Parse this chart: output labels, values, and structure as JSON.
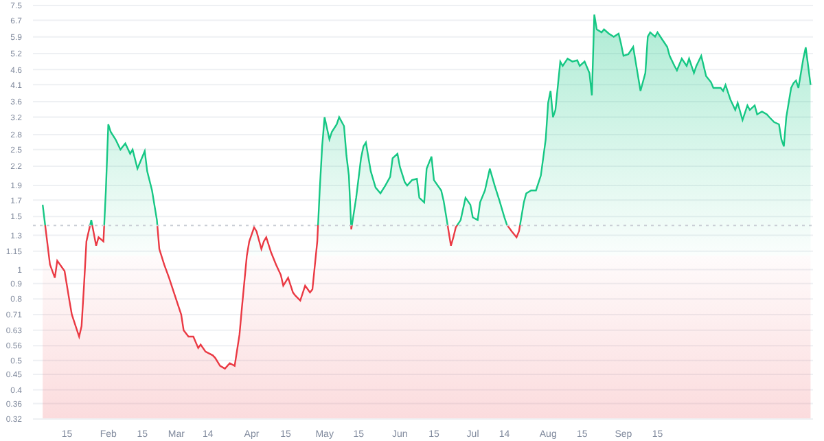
{
  "chart_data": {
    "type": "area",
    "xlim": [
      "--01-01",
      "--11-18"
    ],
    "xticks": [
      {
        "value": "--01-15",
        "label": "15"
      },
      {
        "value": "--02-01",
        "label": "Feb"
      },
      {
        "value": "--02-15",
        "label": "15"
      },
      {
        "value": "--03-01",
        "label": "Mar"
      },
      {
        "value": "--03-14",
        "label": "14"
      },
      {
        "value": "--04-01",
        "label": "Apr"
      },
      {
        "value": "--04-15",
        "label": "15"
      },
      {
        "value": "--05-01",
        "label": "May"
      },
      {
        "value": "--05-15",
        "label": "15"
      },
      {
        "value": "--06-01",
        "label": "Jun"
      },
      {
        "value": "--06-15",
        "label": "15"
      },
      {
        "value": "--07-01",
        "label": "Jul"
      },
      {
        "value": "--07-14",
        "label": "14"
      },
      {
        "value": "--08-01",
        "label": "Aug"
      },
      {
        "value": "--08-15",
        "label": "15"
      },
      {
        "value": "--09-01",
        "label": "Sep"
      },
      {
        "value": "--09-15",
        "label": "15"
      }
    ],
    "log": true,
    "ylim": [
      0.32,
      7.5
    ],
    "yticks": [
      0.32,
      0.36,
      0.4,
      0.45,
      0.5,
      0.56,
      0.63,
      0.71,
      0.8,
      0.9,
      1,
      1.15,
      1.3,
      1.5,
      1.7,
      1.9,
      2.2,
      2.5,
      2.8,
      3.2,
      3.6,
      4.1,
      4.6,
      5.2,
      5.9,
      6.7,
      7.5
    ],
    "grid": "y",
    "ref_lines": [
      {
        "axis": "y",
        "value": 1.4,
        "color": "#c8ccd4",
        "line_style": "dotted"
      }
    ],
    "series": [
      {
        "color": "#16c784",
        "values": [
          1.64,
          1.04,
          0.94,
          1.07,
          0.99,
          0.79,
          0.71,
          0.6,
          0.65,
          0.885,
          1.24,
          1.46,
          1.2,
          1.28,
          1.24,
          1.83,
          3.03,
          2.86,
          2.7,
          2.5,
          2.62,
          2.42,
          2.5,
          2.16,
          2.47,
          2.12,
          1.83,
          1.46,
          1.17,
          1.04,
          0.94,
          0.84,
          0.71,
          0.63,
          0.6,
          0.6,
          0.55,
          0.565,
          0.535,
          0.52,
          0.51,
          0.48,
          0.47,
          0.49,
          0.48,
          0.61,
          0.75,
          1.11,
          1.24,
          1.38,
          1.34,
          1.17,
          1.24,
          1.28,
          1.14,
          1.04,
          0.96,
          0.885,
          0.94,
          0.84,
          0.82,
          0.79,
          0.885,
          0.84,
          0.86,
          1.24,
          1.83,
          2.56,
          3.2,
          2.7,
          2.86,
          3.03,
          3.2,
          2.99,
          2.39,
          2.05,
          1.36,
          1.73,
          2.34,
          2.56,
          2.64,
          2.12,
          1.87,
          1.79,
          1.9,
          2.03,
          2.34,
          2.42,
          2.19,
          1.95,
          1.9,
          1.98,
          2.0,
          1.73,
          1.67,
          2.16,
          2.37,
          1.98,
          1.83,
          1.69,
          1.51,
          1.2,
          1.28,
          1.38,
          1.46,
          1.73,
          1.64,
          1.49,
          1.46,
          1.67,
          1.83,
          2.16,
          1.9,
          1.69,
          1.49,
          1.41,
          1.34,
          1.28,
          1.34,
          1.67,
          1.79,
          1.83,
          1.83,
          2.05,
          2.7,
          3.57,
          3.91,
          3.2,
          3.38,
          4.89,
          4.73,
          5.0,
          4.89,
          4.94,
          4.73,
          4.89,
          4.48,
          3.78,
          7.0,
          6.25,
          6.11,
          6.25,
          6.05,
          5.91,
          6.05,
          5.6,
          5.11,
          5.17,
          5.47,
          4.89,
          3.91,
          4.48,
          5.91,
          6.11,
          5.91,
          6.11,
          5.78,
          5.47,
          5.11,
          4.73,
          4.57,
          5.0,
          4.73,
          5.0,
          4.48,
          4.73,
          5.11,
          4.38,
          4.18,
          4.0,
          4.0,
          3.91,
          4.09,
          3.66,
          3.38,
          3.57,
          3.13,
          3.5,
          3.38,
          3.5,
          3.27,
          3.34,
          3.27,
          3.2,
          3.08,
          3.03,
          2.7,
          2.56,
          3.2,
          4.0,
          4.15,
          4.23,
          4.0,
          5.0,
          5.45,
          4.73,
          4.09
        ],
        "x": [
          "--01-05",
          "--01-08",
          "--01-10",
          "--01-11",
          "--01-14",
          "--01-16",
          "--01-17",
          "--01-20",
          "--01-21",
          "--01-22",
          "--01-23",
          "--01-25",
          "--01-27",
          "--01-28",
          "--01-30",
          "--01-31",
          "--02-01",
          "--02-02",
          "--02-04",
          "--02-06",
          "--02-08",
          "--02-10",
          "--02-11",
          "--02-13",
          "--02-16",
          "--02-17",
          "--02-19",
          "--02-21",
          "--02-22",
          "--02-24",
          "--02-26",
          "--02-28",
          "--03-03",
          "--03-04",
          "--03-06",
          "--03-08",
          "--03-10",
          "--03-11",
          "--03-13",
          "--03-16",
          "--03-17",
          "--03-19",
          "--03-21",
          "--03-23",
          "--03-25",
          "--03-27",
          "--03-28",
          "--03-30",
          "--03-31",
          "--04-02",
          "--04-03",
          "--04-05",
          "--04-06",
          "--04-07",
          "--04-09",
          "--04-11",
          "--04-13",
          "--04-14",
          "--04-16",
          "--04-18",
          "--04-19",
          "--04-21",
          "--04-23",
          "--04-25",
          "--04-26",
          "--04-28",
          "--04-29",
          "--04-30",
          "--05-01",
          "--05-03",
          "--05-04",
          "--05-06",
          "--05-07",
          "--05-09",
          "--05-10",
          "--05-11",
          "--05-12",
          "--05-14",
          "--05-16",
          "--05-17",
          "--05-18",
          "--05-20",
          "--05-22",
          "--05-24",
          "--05-26",
          "--05-28",
          "--05-29",
          "--05-31",
          "--06-01",
          "--06-03",
          "--06-04",
          "--06-06",
          "--06-08",
          "--06-09",
          "--06-11",
          "--06-12",
          "--06-14",
          "--06-15",
          "--06-18",
          "--06-19",
          "--06-20",
          "--06-22",
          "--06-23",
          "--06-24",
          "--06-26",
          "--06-28",
          "--06-30",
          "--07-01",
          "--07-03",
          "--07-04",
          "--07-06",
          "--07-08",
          "--07-10",
          "--07-12",
          "--07-14",
          "--07-15",
          "--07-17",
          "--07-19",
          "--07-20",
          "--07-22",
          "--07-23",
          "--07-25",
          "--07-27",
          "--07-29",
          "--07-31",
          "--08-01",
          "--08-02",
          "--08-03",
          "--08-04",
          "--08-06",
          "--08-07",
          "--08-09",
          "--08-11",
          "--08-13",
          "--08-14",
          "--08-16",
          "--08-18",
          "--08-19",
          "--08-20",
          "--08-21",
          "--08-23",
          "--08-24",
          "--08-26",
          "--08-28",
          "--08-30",
          "--08-31",
          "--09-01",
          "--09-03",
          "--09-05",
          "--09-06",
          "--09-08",
          "--09-10",
          "--09-11",
          "--09-12",
          "--09-14",
          "--09-15",
          "--09-17",
          "--09-19",
          "--09-20",
          "--09-22",
          "--09-23",
          "--09-25",
          "--09-27",
          "--09-28",
          "--09-30",
          "--10-01",
          "--10-03",
          "--10-05",
          "--10-07",
          "--10-08",
          "--10-11",
          "--10-12",
          "--10-13",
          "--10-15",
          "--10-17",
          "--10-18",
          "--10-20",
          "--10-22",
          "--10-23",
          "--10-25",
          "--10-26",
          "--10-28",
          "--10-30",
          "--10-31",
          "--11-02",
          "--11-04",
          "--11-05",
          "--11-06",
          "--11-07",
          "--11-09",
          "--11-10",
          "--11-11",
          "--11-12",
          "--11-14",
          "--11-15",
          "--11-16",
          "--11-17"
        ]
      }
    ]
  }
}
